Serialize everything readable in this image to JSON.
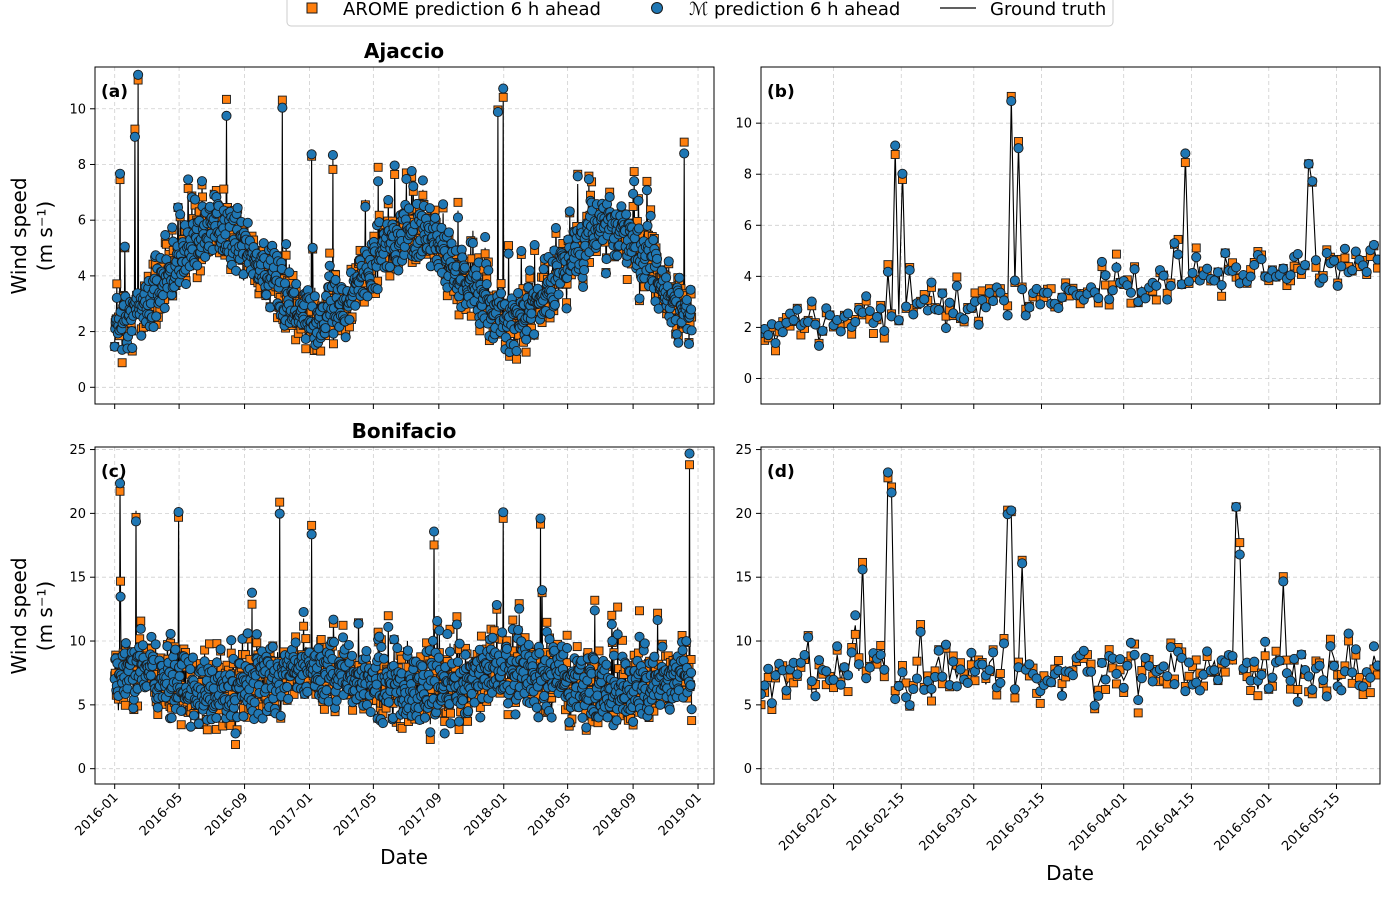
{
  "legend": {
    "items": [
      {
        "label": "AROME prediction 6 h ahead",
        "marker": "square",
        "color": "#ff7f0e"
      },
      {
        "label": "ℳ prediction 6 h ahead",
        "marker": "circle",
        "color": "#1f77b4"
      },
      {
        "label": "Ground truth",
        "marker": "line",
        "color": "#000000"
      }
    ]
  },
  "colors": {
    "arome": "#ff7f0e",
    "model": "#1f77b4",
    "truth": "#000000",
    "edge": "#1a1a1a"
  },
  "chart_data": [
    {
      "id": "a",
      "type": "scatter",
      "panel_label": "(a)",
      "title": "Ajaccio",
      "xlabel": "",
      "ylabel": "Wind speed",
      "ylabel_unit": "(m s⁻¹)",
      "x_axis": "date",
      "xlim": [
        "2015-11-25",
        "2019-01-31"
      ],
      "ylim": [
        -0.6,
        11.5
      ],
      "yticks": [
        0,
        2,
        4,
        6,
        8,
        10
      ],
      "xticks": [
        "2016-01",
        "2016-05",
        "2016-09",
        "2017-01",
        "2017-05",
        "2017-09",
        "2018-01",
        "2018-05",
        "2018-09",
        "2019-01"
      ],
      "show_xtick_labels": false,
      "series_generator": {
        "start": "2016-01-01",
        "end": "2018-12-20",
        "step_days": 1,
        "mean_base": 4.0,
        "seasonal_amp": 1.6,
        "peak_day": 195,
        "spread": 1.5,
        "spikes": [
          [
            10,
            7.7
          ],
          [
            38,
            9.1
          ],
          [
            44,
            11.0
          ],
          [
            210,
            9.8
          ],
          [
            315,
            10.2
          ],
          [
            370,
            8.5
          ],
          [
            410,
            8.2
          ],
          [
            720,
            9.9
          ],
          [
            730,
            10.3
          ],
          [
            870,
            7.3
          ],
          [
            1000,
            7.4
          ],
          [
            1070,
            8.4
          ]
        ],
        "seed": 11
      }
    },
    {
      "id": "b",
      "type": "scatter",
      "panel_label": "(b)",
      "title": "",
      "xlabel": "",
      "ylabel": "",
      "x_axis": "date",
      "xlim": [
        "2016-01-17",
        "2016-05-24"
      ],
      "ylim": [
        -1.0,
        12.2
      ],
      "yticks": [
        0,
        2,
        4,
        6,
        8,
        10
      ],
      "xticks": [
        "2016-02-01",
        "2016-02-15",
        "2016-03-01",
        "2016-03-15",
        "2016-04-01",
        "2016-04-15",
        "2016-05-01",
        "2016-05-15"
      ],
      "show_xtick_labels": false,
      "series_generator": {
        "start": "2016-01-17",
        "end": "2016-05-24",
        "step_days": 0.75,
        "mean_base": 2.0,
        "trend": 2.6,
        "spread": 1.0,
        "spikes": [
          [
            28,
            9.0
          ],
          [
            29,
            8.1
          ],
          [
            52,
            11.0
          ],
          [
            53,
            9.1
          ],
          [
            88,
            8.7
          ],
          [
            113,
            8.5
          ],
          [
            114,
            7.6
          ]
        ],
        "seed": 23
      }
    },
    {
      "id": "c",
      "type": "scatter",
      "panel_label": "(c)",
      "title": "Bonifacio",
      "xlabel": "Date",
      "ylabel": "Wind speed",
      "ylabel_unit": "(m s⁻¹)",
      "x_axis": "date",
      "xlim": [
        "2015-11-25",
        "2019-01-31"
      ],
      "ylim": [
        -1.2,
        25.2
      ],
      "yticks": [
        0,
        5,
        10,
        15,
        20,
        25
      ],
      "xticks": [
        "2016-01",
        "2016-05",
        "2016-09",
        "2017-01",
        "2017-05",
        "2017-09",
        "2018-01",
        "2018-05",
        "2018-09",
        "2019-01"
      ],
      "show_xtick_labels": true,
      "series_generator": {
        "start": "2016-01-01",
        "end": "2018-12-20",
        "step_days": 1,
        "mean_base": 6.8,
        "seasonal_amp": -0.8,
        "peak_day": 195,
        "spread": 3.8,
        "spikes": [
          [
            10,
            22.8
          ],
          [
            40,
            20.2
          ],
          [
            120,
            20.5
          ],
          [
            310,
            20.6
          ],
          [
            370,
            18.0
          ],
          [
            600,
            18.7
          ],
          [
            730,
            20.0
          ],
          [
            800,
            19.1
          ],
          [
            1080,
            23.6
          ]
        ],
        "seed": 37
      }
    },
    {
      "id": "d",
      "type": "scatter",
      "panel_label": "(d)",
      "title": "",
      "xlabel": "Date",
      "ylabel": "",
      "x_axis": "date",
      "xlim": [
        "2016-01-17",
        "2016-05-24"
      ],
      "ylim": [
        -1.2,
        25.2
      ],
      "yticks": [
        0,
        5,
        10,
        15,
        20,
        25
      ],
      "xticks": [
        "2016-02-01",
        "2016-02-15",
        "2016-03-01",
        "2016-03-15",
        "2016-04-01",
        "2016-04-15",
        "2016-05-01",
        "2016-05-15"
      ],
      "show_xtick_labels": true,
      "series_generator": {
        "start": "2016-01-17",
        "end": "2016-05-24",
        "step_days": 0.75,
        "mean_base": 7.5,
        "trend": 0,
        "spread": 3.2,
        "spikes": [
          [
            21,
            16.1
          ],
          [
            26,
            22.8
          ],
          [
            27,
            21.4
          ],
          [
            33,
            11.0
          ],
          [
            51,
            20.0
          ],
          [
            52,
            19.8
          ],
          [
            54,
            16.0
          ],
          [
            98,
            20.5
          ],
          [
            99,
            17.3
          ],
          [
            108,
            14.6
          ]
        ],
        "seed": 53
      }
    }
  ]
}
